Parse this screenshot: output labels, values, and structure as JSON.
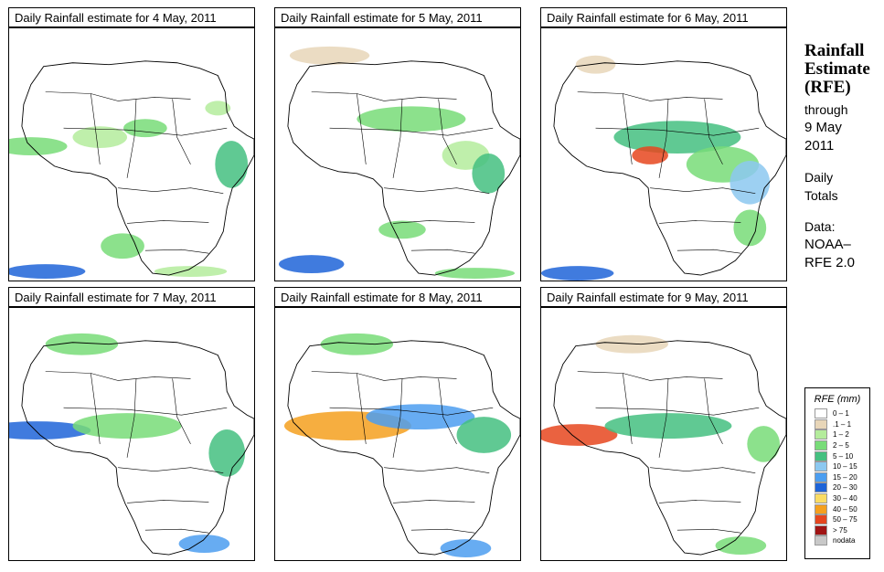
{
  "panels": [
    {
      "title": "Daily Rainfall estimate for  4 May, 2011",
      "date": "4 May, 2011"
    },
    {
      "title": "Daily Rainfall estimate for  5 May, 2011",
      "date": "5 May, 2011"
    },
    {
      "title": "Daily Rainfall estimate for  6 May, 2011",
      "date": "6 May, 2011"
    },
    {
      "title": "Daily Rainfall estimate for  7 May, 2011",
      "date": "7 May, 2011"
    },
    {
      "title": "Daily Rainfall estimate for  8 May, 2011",
      "date": "8 May, 2011"
    },
    {
      "title": "Daily Rainfall estimate for  9 May, 2011",
      "date": "9 May, 2011"
    }
  ],
  "sidebar": {
    "title_line1": "Rainfall",
    "title_line2": "Estimate",
    "title_line3": "(RFE)",
    "through": "through",
    "through_date_line1": "9 May",
    "through_date_line2": "2011",
    "totals_line1": "Daily",
    "totals_line2": "Totals",
    "data_label": "Data:",
    "data_source_line1": "NOAA–",
    "data_source_line2": "RFE 2.0"
  },
  "legend": {
    "title": "RFE (mm)",
    "items": [
      {
        "label": "0 – 1",
        "color": "#ffffff"
      },
      {
        "label": ".1 – 1",
        "color": "#e8d6b8"
      },
      {
        "label": "1 – 2",
        "color": "#b4ec9c"
      },
      {
        "label": "2 – 5",
        "color": "#78dc78"
      },
      {
        "label": "5 – 10",
        "color": "#44c080"
      },
      {
        "label": "10 – 15",
        "color": "#8cc8f0"
      },
      {
        "label": "15 – 20",
        "color": "#4c9ef0"
      },
      {
        "label": "20 – 30",
        "color": "#1e64d8"
      },
      {
        "label": "30 – 40",
        "color": "#fadc64"
      },
      {
        "label": "40 – 50",
        "color": "#f5a01e"
      },
      {
        "label": "50 – 75",
        "color": "#e6461e"
      },
      {
        "label": "> 75",
        "color": "#a01414"
      },
      {
        "label": "nodata",
        "color": "#c8c8c8"
      }
    ]
  }
}
